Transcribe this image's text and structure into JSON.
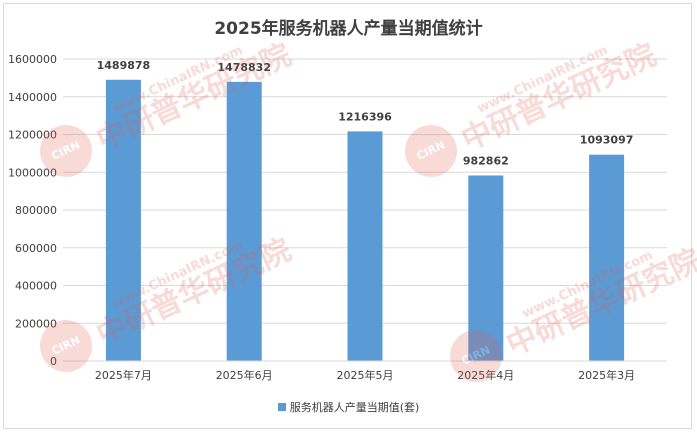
{
  "chart_data": {
    "type": "bar",
    "title": "2025年服务机器人产量当期值统计",
    "categories": [
      "2025年7月",
      "2025年6月",
      "2025年5月",
      "2025年4月",
      "2025年3月"
    ],
    "series": [
      {
        "name": "服务机器人产量当期值(套)",
        "values": [
          1489878,
          1478832,
          1216396,
          982862,
          1093097
        ],
        "color": "#5b9bd5"
      }
    ],
    "data_labels": [
      "1489878",
      "1478832",
      "1216396",
      "982862",
      "1093097"
    ],
    "ylim": [
      0,
      1600000
    ],
    "yticks": [
      "0",
      "200000",
      "400000",
      "600000",
      "800000",
      "1000000",
      "1200000",
      "1400000",
      "1600000"
    ],
    "grid": true,
    "legend_position": "bottom"
  },
  "watermark": {
    "text_cn": "中研普华研究院",
    "text_en": "www.ChinaIRN.com",
    "badge": "CIRN"
  }
}
